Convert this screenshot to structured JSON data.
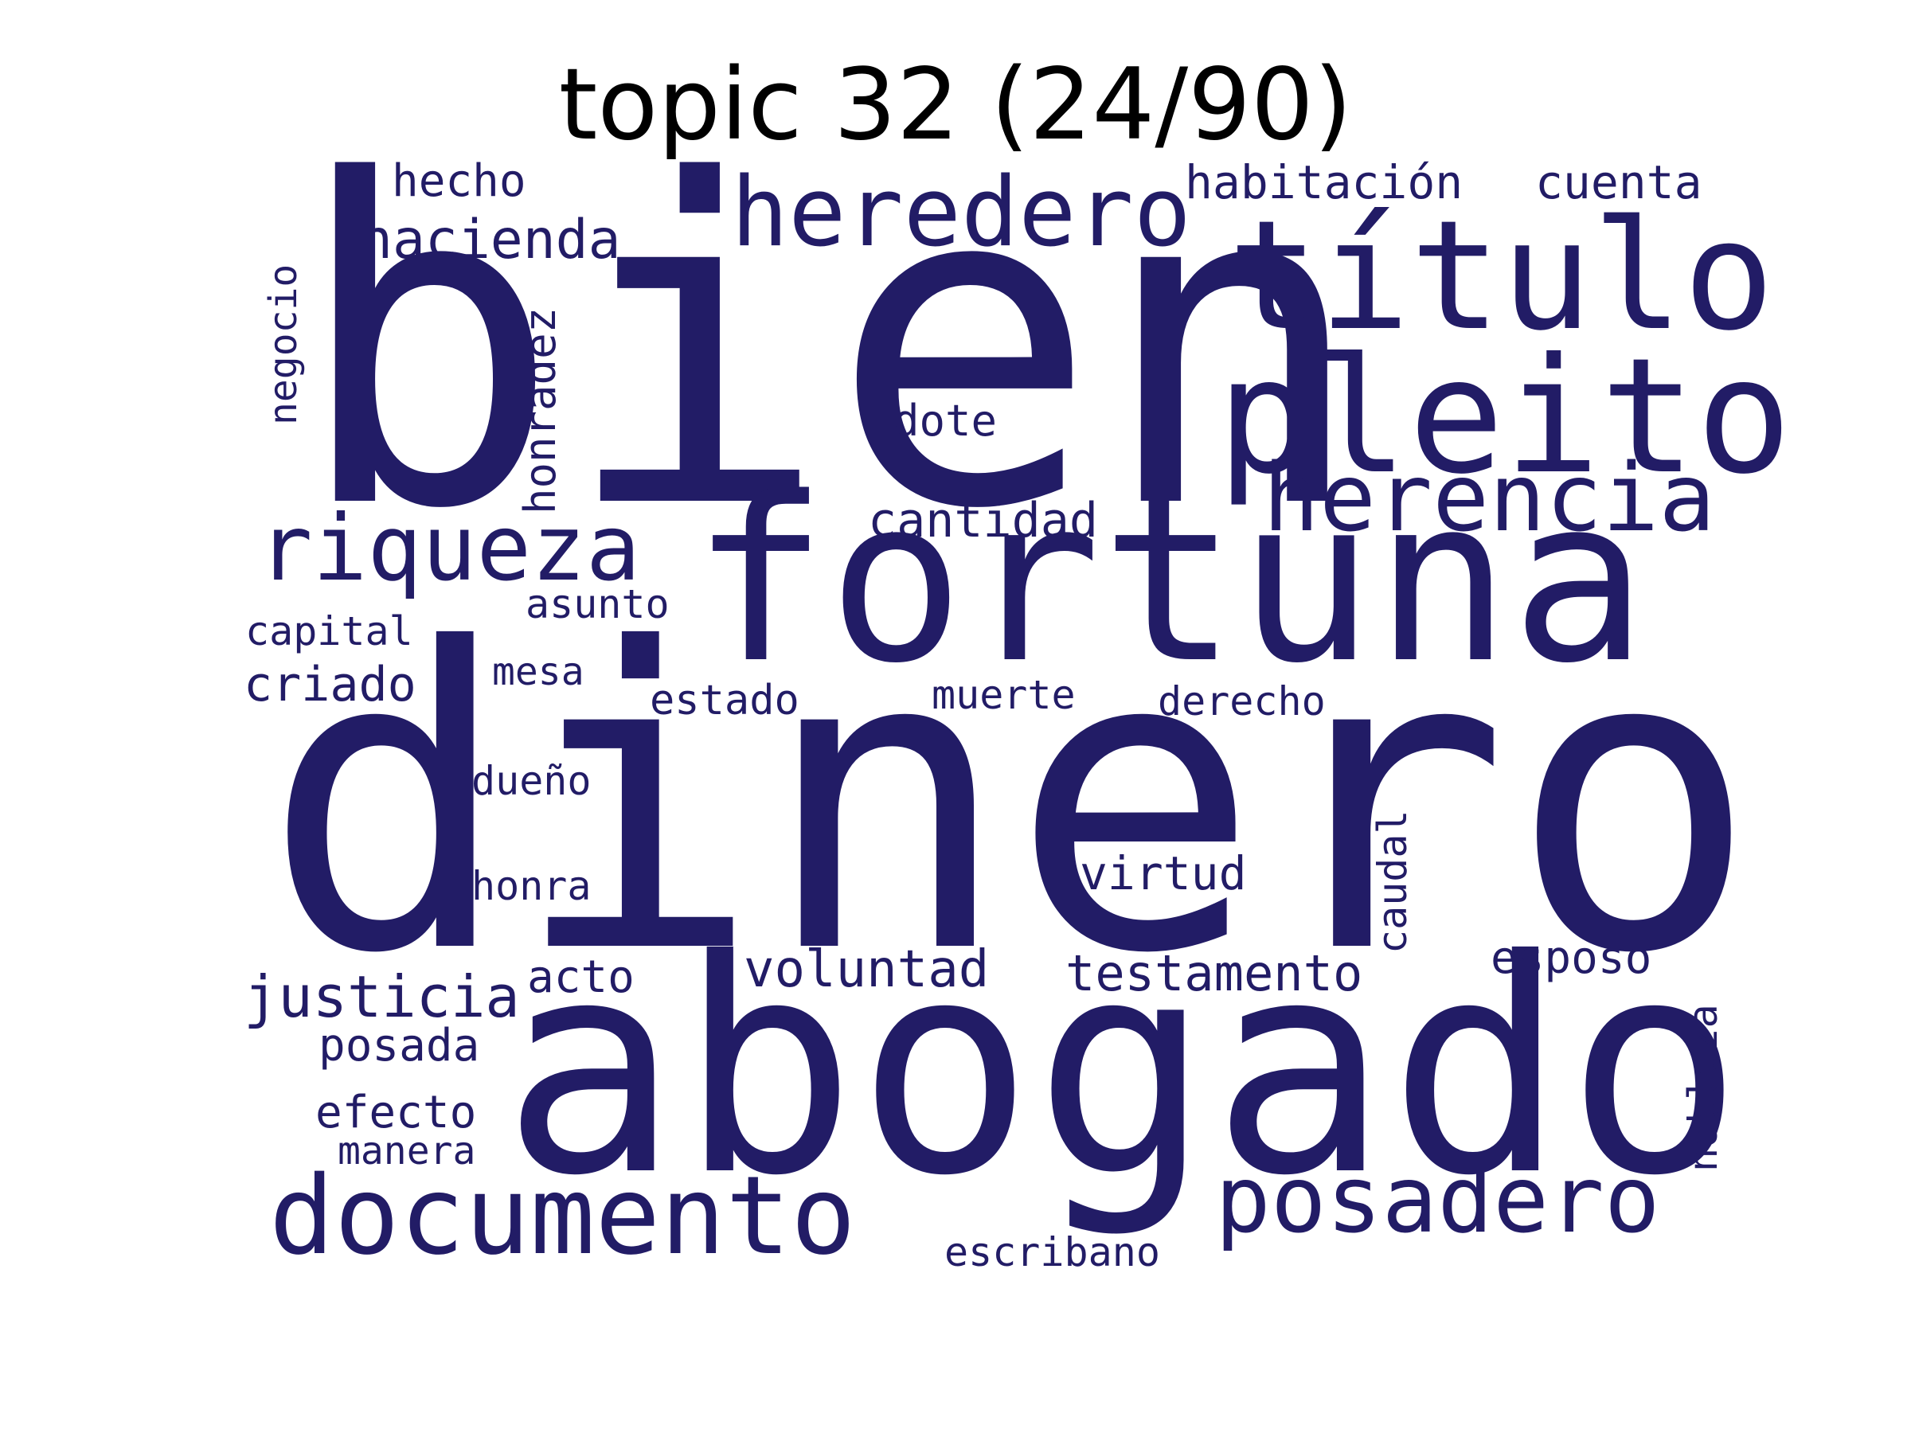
{
  "title": "topic 32 (24/90)",
  "color": "#221c66",
  "words": {
    "bien": "bien",
    "dinero": "dinero",
    "abogado": "abogado",
    "fortuna": "fortuna",
    "titulo": "título",
    "pleito": "pleito",
    "heredero": "heredero",
    "herencia": "herencia",
    "riqueza": "riqueza",
    "documento": "documento",
    "posadero": "posadero",
    "hacienda": "hacienda",
    "hecho": "hecho",
    "habitacion": "habitación",
    "cuenta": "cuenta",
    "negocio": "negocio",
    "honradez": "honradez",
    "dote": "dote",
    "cantidad": "cantidad",
    "asunto": "asunto",
    "capital": "capital",
    "mesa": "mesa",
    "criado": "criado",
    "estado": "estado",
    "muerte": "muerte",
    "derecho": "derecho",
    "dueno": "dueño",
    "caudal": "caudal",
    "virtud": "virtud",
    "honra": "honra",
    "acto": "acto",
    "voluntad": "voluntad",
    "testamento": "testamento",
    "esposo": "esposo",
    "justicia": "justicia",
    "nobleza": "nobleza",
    "posada": "posada",
    "efecto": "efecto",
    "manera": "manera",
    "escribano": "escribano"
  }
}
